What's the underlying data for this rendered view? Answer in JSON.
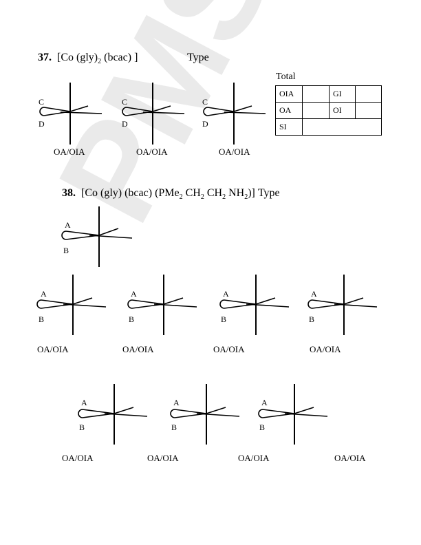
{
  "watermark": "PMSsir",
  "q37": {
    "number": "37.",
    "formula_pre": "[Co (gly)",
    "formula_sub1": "2",
    "formula_post": " (bcac) ]",
    "type_label": "Type",
    "top_label": "C",
    "bottom_label": "D",
    "answer": "OA/OIA",
    "total_label": "Total",
    "table": {
      "oia": "OIA",
      "gi": "GI",
      "oa": "OA",
      "oi": "OI",
      "si": "SI"
    }
  },
  "q38": {
    "number": "38.",
    "f1": "[Co (gly) (bcac) (PMe",
    "f1_sub": "2",
    "f2": " CH",
    "f2_sub": "2",
    "f3": " CH",
    "f3_sub": "2",
    "f4": " NH",
    "f4_sub": "2",
    "f5": ")]",
    "type_label": "Type",
    "top_label": "A",
    "bottom_label": "B",
    "answer": "OA/OIA"
  }
}
